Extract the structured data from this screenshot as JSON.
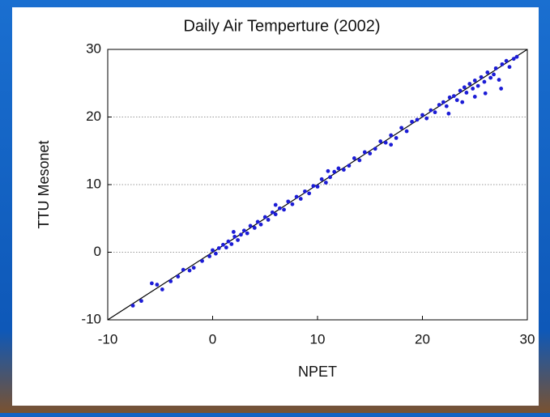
{
  "chart_data": {
    "type": "scatter",
    "title": "Daily Air Temperture (2002)",
    "x_label": "NPET",
    "y_label": "TTU Mesonet",
    "xlim": [
      -10,
      30
    ],
    "ylim": [
      -10,
      30
    ],
    "xticks": [
      -10,
      0,
      10,
      20,
      30
    ],
    "yticks": [
      -10,
      0,
      10,
      20,
      30
    ],
    "grid": true,
    "diagonal": true,
    "color": "#1c1cd6",
    "x": [
      -7.6,
      -6.8,
      -5.8,
      -5.3,
      -4.8,
      -4,
      -3.3,
      -2.8,
      -2.2,
      -1.8,
      -1,
      -0.3,
      0,
      0.3,
      0.6,
      1,
      1.3,
      1.5,
      1.8,
      2.1,
      2.4,
      2.7,
      3,
      3.3,
      3.6,
      4,
      4.3,
      4.6,
      5,
      5.3,
      5.7,
      6,
      6.4,
      6.8,
      7.2,
      7.6,
      8,
      8.4,
      8.8,
      9.2,
      9.6,
      10,
      10.4,
      10.8,
      11.2,
      11.6,
      12,
      12.5,
      13,
      13.5,
      14,
      14.5,
      15,
      15.5,
      16,
      16.5,
      17,
      17.5,
      18,
      18.5,
      19,
      19.5,
      20,
      20.4,
      20.8,
      21.2,
      21.6,
      22,
      22.3,
      22.6,
      23,
      23.3,
      23.6,
      24,
      24.2,
      24.5,
      24.8,
      25,
      25.3,
      25.6,
      25.9,
      26.2,
      26.5,
      26.8,
      27,
      27.3,
      27.6,
      28,
      28.3,
      28.7,
      29,
      26,
      27.5,
      25,
      22.5,
      23.8,
      2,
      6,
      11,
      17
    ],
    "values": [
      -7.9,
      -7.2,
      -4.6,
      -4.8,
      -5.5,
      -4.3,
      -3.6,
      -2.6,
      -2.7,
      -2.3,
      -1.3,
      -0.6,
      0.3,
      -0.2,
      0.6,
      1.1,
      0.7,
      1.6,
      1.2,
      2.3,
      1.8,
      2.6,
      3.2,
      2.8,
      3.9,
      3.6,
      4.5,
      4.1,
      5.2,
      4.8,
      5.9,
      5.6,
      6.5,
      6.3,
      7.5,
      7.1,
      8.2,
      7.9,
      9,
      8.7,
      9.8,
      9.7,
      10.8,
      10.3,
      11.1,
      11.9,
      12.4,
      12.2,
      12.8,
      13.9,
      13.6,
      14.8,
      14.6,
      15.3,
      16.4,
      16.2,
      17.3,
      16.9,
      18.4,
      17.9,
      19.3,
      19.6,
      20.3,
      19.8,
      21,
      20.7,
      21.8,
      22.2,
      21.6,
      22.9,
      23.1,
      22.5,
      23.9,
      24.4,
      23.6,
      24.9,
      24.2,
      25.4,
      24.6,
      25.9,
      25.2,
      26.6,
      25.8,
      26.3,
      27.2,
      25.5,
      27.8,
      28.3,
      27.4,
      28.6,
      28.9,
      23.5,
      24.2,
      23,
      20.5,
      22.2,
      3,
      7,
      12,
      15.9
    ]
  }
}
